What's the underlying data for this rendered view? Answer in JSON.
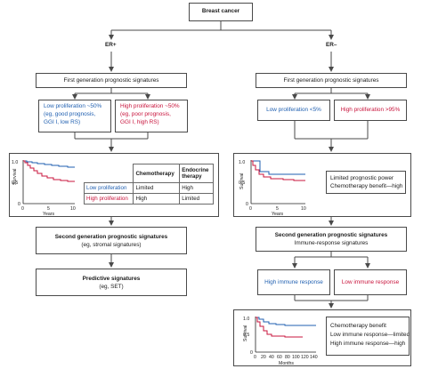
{
  "root": {
    "label": "Breast cancer"
  },
  "left": {
    "branch_label": "ER+",
    "first_gen": "First generation prognostic signatures",
    "low_prolif": [
      "Low proliferation ~50%",
      "(eg, good prognosis,",
      "GGI I, low RS)"
    ],
    "high_prolif": [
      "High proliferation ~50%",
      "(eg, poor prognosis,",
      "GGI I, high RS)"
    ],
    "table": {
      "col1": "Chemotherapy",
      "col2": [
        "Endocrine",
        "therapy"
      ],
      "rows": [
        {
          "label": "Low proliferation",
          "chemo": "Limited",
          "endo": "High"
        },
        {
          "label": "High proliferation",
          "chemo": "High",
          "endo": "Limited"
        }
      ]
    },
    "second_gen": [
      "Second generation prognostic signatures",
      "(eg, stromal signatures)"
    ],
    "predictive": [
      "Predictive signatures",
      "(eg, SET)"
    ]
  },
  "right": {
    "branch_label": "ER–",
    "first_gen": "First generation prognostic signatures",
    "low_prolif": "Low proliferation <5%",
    "high_prolif": "High proliferation >95%",
    "note1": [
      "Limited prognostic power",
      "Chemotherapy benefit—high"
    ],
    "second_gen": [
      "Second generation prognostic signatures",
      "Immune-response signatures"
    ],
    "high_immune": "High immune response",
    "low_immune": "Low immune response",
    "note2": [
      "Chemotherapy benefit",
      "Low immune response—limited",
      "High immune response—high"
    ]
  },
  "plots": {
    "km1": {
      "ylabel": "Survival",
      "xlabel": "Years",
      "yticks": [
        "1.0",
        "0.5",
        "0"
      ],
      "xticks": [
        "0",
        "5",
        "10"
      ]
    },
    "km2": {
      "ylabel": "Survival",
      "xlabel": "Years",
      "yticks": [
        "1.0",
        "0.5",
        "0"
      ],
      "xticks": [
        "0",
        "5",
        "10"
      ]
    },
    "km3": {
      "ylabel": "Survival",
      "xlabel": "Months",
      "yticks": [
        "1.0",
        "0.5",
        "0"
      ],
      "xticks": [
        "0",
        "20",
        "40",
        "60",
        "80",
        "100",
        "120",
        "140"
      ]
    }
  },
  "colors": {
    "blue": "#1f5fb0",
    "red": "#c8143c",
    "line": "#4a4a4a"
  }
}
